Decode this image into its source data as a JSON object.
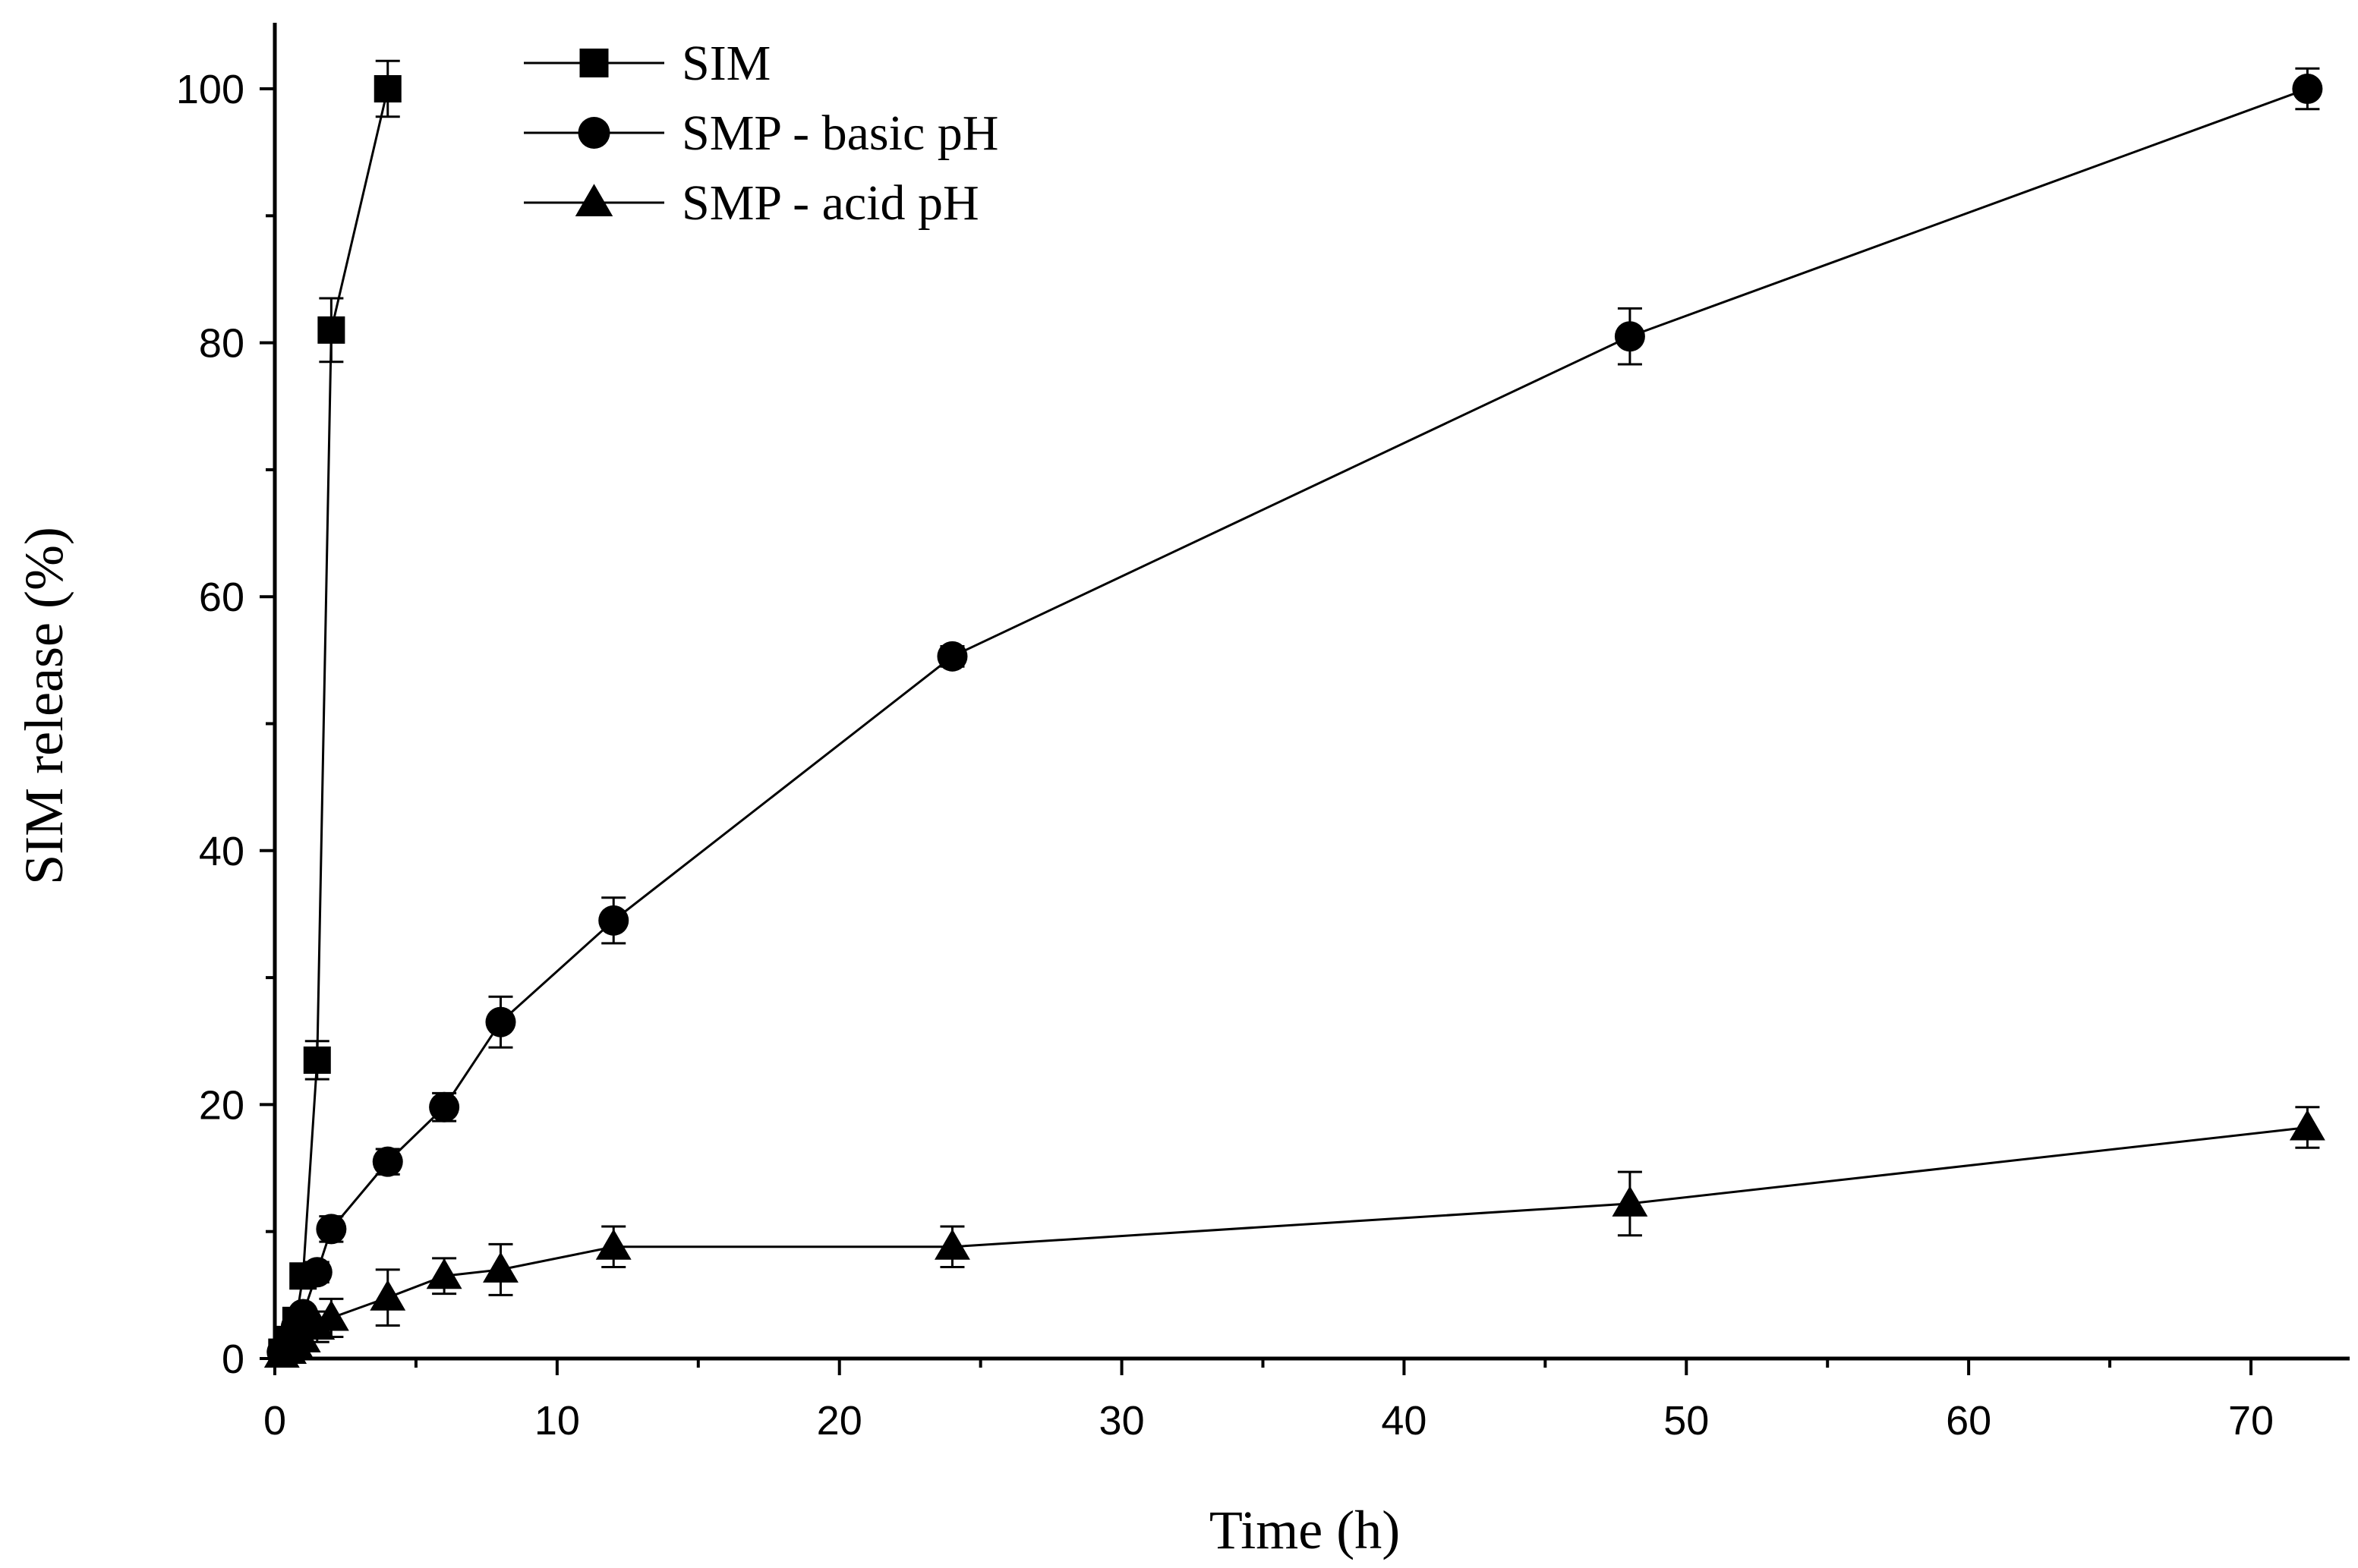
{
  "chart_data": {
    "type": "line",
    "title": "",
    "xlabel": "Time (h)",
    "ylabel": "SIM release (%)",
    "xlim": [
      0,
      75
    ],
    "ylim": [
      0,
      105
    ],
    "xticks": [
      0,
      10,
      20,
      30,
      40,
      50,
      60,
      70
    ],
    "yticks": [
      0,
      20,
      40,
      60,
      80,
      100
    ],
    "grid": false,
    "legend_position": "top-left",
    "colors": {
      "line": "#000000",
      "marker": "#000000",
      "axis": "#000000"
    },
    "series": [
      {
        "name": "SIM",
        "marker": "square",
        "x": [
          0.25,
          0.5,
          0.75,
          1,
          1.5,
          2,
          4
        ],
        "y": [
          0.5,
          1.5,
          3,
          6.5,
          23.5,
          81,
          100
        ],
        "error": [
          0.3,
          0.4,
          0.6,
          0.8,
          1.5,
          2.5,
          2.2
        ]
      },
      {
        "name": "SMP - basic pH",
        "marker": "circle",
        "x": [
          0.25,
          0.5,
          0.75,
          1,
          1.5,
          2,
          4,
          6,
          8,
          12,
          24,
          48,
          72
        ],
        "y": [
          0.5,
          1.5,
          2.5,
          3.5,
          6.8,
          10.2,
          15.5,
          19.8,
          26.5,
          34.5,
          55.3,
          80.5,
          100
        ],
        "error": [
          0.3,
          0.4,
          0.5,
          0.5,
          0.8,
          1.0,
          1.0,
          1.1,
          2.0,
          1.8,
          0.8,
          2.2,
          1.6
        ]
      },
      {
        "name": "SMP - acid pH",
        "marker": "triangle",
        "x": [
          0.25,
          0.5,
          0.75,
          1,
          1.5,
          2,
          4,
          6,
          8,
          12,
          24,
          48,
          72
        ],
        "y": [
          0.3,
          0.6,
          1.0,
          1.5,
          2.5,
          3.2,
          4.8,
          6.5,
          7.0,
          8.8,
          8.8,
          12.2,
          18.2
        ],
        "error": [
          0.4,
          0.5,
          0.6,
          0.8,
          1.2,
          1.5,
          2.2,
          1.4,
          2.0,
          1.6,
          1.6,
          2.5,
          1.6
        ]
      }
    ]
  }
}
